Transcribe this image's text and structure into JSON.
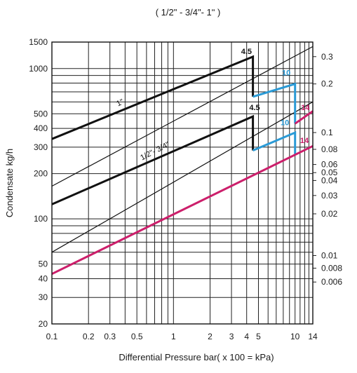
{
  "chart_data": {
    "type": "line",
    "title": "( 1/2\" -  3/4\"- 1ʺ )",
    "xlabel": "Differential Pressure  bar( x 100 = kPa)",
    "ylabel": "Condensate kg/h",
    "x_scale": "log",
    "y_scale": "log",
    "xlim": [
      0.1,
      14
    ],
    "ylim": [
      20,
      1500
    ],
    "grid": true,
    "x_ticks": [
      "0.1",
      "0.2",
      "0.3",
      "0.5",
      "1",
      "2",
      "3",
      "4",
      "5",
      "10",
      "14"
    ],
    "x_tick_values": [
      0.1,
      0.2,
      0.3,
      0.5,
      1,
      2,
      3,
      4,
      5,
      10,
      14
    ],
    "y_ticks": [
      "20",
      "30",
      "40",
      "50",
      "100",
      "200",
      "300",
      "400",
      "500",
      "1000",
      "1500"
    ],
    "y_tick_values": [
      20,
      30,
      40,
      50,
      100,
      200,
      300,
      400,
      500,
      1000,
      1500
    ],
    "y2_ticks": [
      "0.3",
      "0.2",
      "0.1",
      "0.08",
      "0.06",
      "0.05",
      "0.04",
      "0.03",
      "0.02",
      "0.01",
      "0.008",
      "0.006"
    ],
    "y2_tick_values": [
      1200,
      790,
      375,
      290,
      230,
      203,
      180,
      143,
      108,
      57,
      47,
      38
    ],
    "colors": {
      "black": "#111111",
      "blue": "#2a9ad6",
      "magenta": "#cc1f6b"
    },
    "series": [
      {
        "name": "1\"",
        "color": "#111111",
        "width": 3,
        "x": [
          0.1,
          4.5,
          4.5
        ],
        "y": [
          340,
          1200,
          650
        ]
      },
      {
        "name": "1/2\"- 3/4\"",
        "color": "#111111",
        "width": 3,
        "x": [
          0.1,
          4.5,
          4.5
        ],
        "y": [
          125,
          480,
          285
        ]
      },
      {
        "name": "",
        "color": "#111111",
        "width": 1.2,
        "x": [
          0.1,
          14
        ],
        "y": [
          165,
          1400
        ]
      },
      {
        "name": "",
        "color": "#111111",
        "width": 1.2,
        "x": [
          0.1,
          14
        ],
        "y": [
          60,
          600
        ]
      },
      {
        "name": "",
        "color": "#2a9ad6",
        "width": 3,
        "x": [
          4.5,
          10,
          10
        ],
        "y": [
          650,
          790,
          430
        ]
      },
      {
        "name": "",
        "color": "#2a9ad6",
        "width": 3,
        "x": [
          4.5,
          10,
          10
        ],
        "y": [
          285,
          375,
          265
        ]
      },
      {
        "name": "",
        "color": "#cc1f6b",
        "width": 3,
        "x": [
          10,
          14
        ],
        "y": [
          430,
          520
        ]
      },
      {
        "name": "",
        "color": "#cc1f6b",
        "width": 3,
        "x": [
          0.1,
          14
        ],
        "y": [
          43,
          305
        ]
      }
    ],
    "annotations": [
      {
        "text": "4.5",
        "x": 3.6,
        "y": 1250,
        "color": "#111111"
      },
      {
        "text": "4.5",
        "x": 4.2,
        "y": 530,
        "color": "#111111"
      },
      {
        "text": "10",
        "x": 7.8,
        "y": 900,
        "color": "#2a9ad6"
      },
      {
        "text": "10",
        "x": 7.6,
        "y": 420,
        "color": "#2a9ad6"
      },
      {
        "text": "14",
        "x": 11.2,
        "y": 530,
        "color": "#cc1f6b"
      },
      {
        "text": "14",
        "x": 11.0,
        "y": 320,
        "color": "#cc1f6b"
      }
    ],
    "series_labels": [
      {
        "text": "1\"",
        "x": 0.35,
        "y": 560,
        "rotate": -27
      },
      {
        "text": "1/2\"- 3/4\"",
        "x": 0.55,
        "y": 245,
        "rotate": -27
      }
    ]
  }
}
